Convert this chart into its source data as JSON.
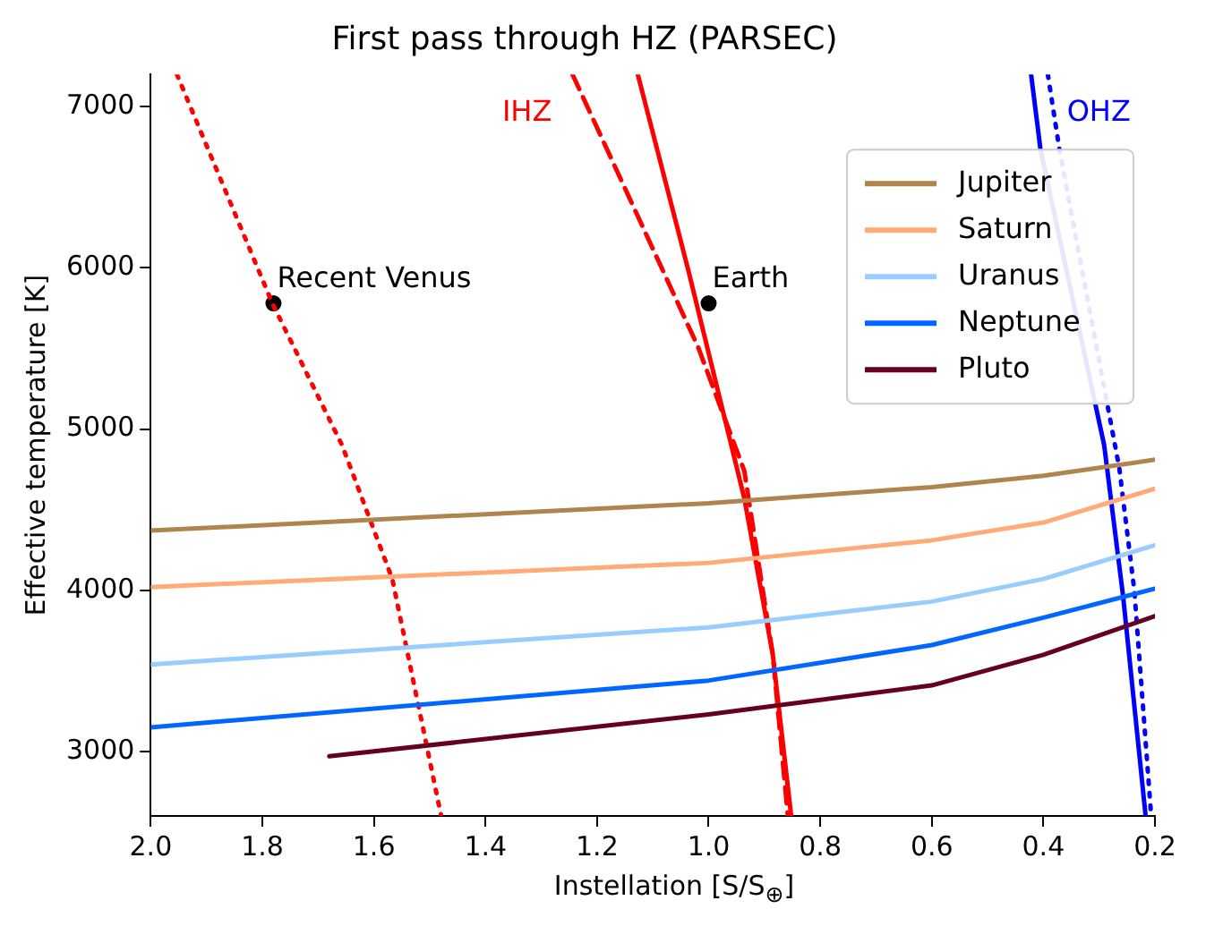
{
  "chart_data": {
    "type": "line",
    "title": "First pass through HZ (PARSEC)",
    "xlabel": "Instellation [S/S$_{⊕}$]",
    "ylabel": "Effective temperature [K]",
    "xlim": [
      2.0,
      0.2
    ],
    "ylim": [
      2600,
      7200
    ],
    "xticks": [
      {
        "value": 2.0,
        "label": "2.0"
      },
      {
        "value": 1.8,
        "label": "1.8"
      },
      {
        "value": 1.6,
        "label": "1.6"
      },
      {
        "value": 1.4,
        "label": "1.4"
      },
      {
        "value": 1.2,
        "label": "1.2"
      },
      {
        "value": 1.0,
        "label": "1.0"
      },
      {
        "value": 0.8,
        "label": "0.8"
      },
      {
        "value": 0.6,
        "label": "0.6"
      },
      {
        "value": 0.4,
        "label": "0.4"
      },
      {
        "value": 0.2,
        "label": "0.2"
      }
    ],
    "yticks": [
      3000,
      4000,
      5000,
      6000,
      7000
    ],
    "series": [
      {
        "name": "Jupiter",
        "color": "#b0844f",
        "line_style": "solid",
        "x": [
          2.0,
          1.0,
          0.6,
          0.4,
          0.2
        ],
        "values": [
          4370,
          4540,
          4640,
          4710,
          4810
        ]
      },
      {
        "name": "Saturn",
        "color": "#ffaa77",
        "line_style": "solid",
        "x": [
          2.0,
          1.0,
          0.6,
          0.4,
          0.2
        ],
        "values": [
          4020,
          4170,
          4310,
          4420,
          4630
        ]
      },
      {
        "name": "Uranus",
        "color": "#99ccff",
        "line_style": "solid",
        "x": [
          2.0,
          1.0,
          0.6,
          0.4,
          0.2
        ],
        "values": [
          3540,
          3770,
          3930,
          4070,
          4280
        ]
      },
      {
        "name": "Neptune",
        "color": "#0066ff",
        "line_style": "solid",
        "x": [
          2.0,
          1.0,
          0.6,
          0.4,
          0.2
        ],
        "values": [
          3150,
          3440,
          3660,
          3830,
          4010
        ]
      },
      {
        "name": "Pluto",
        "color": "#660022",
        "line_style": "solid",
        "x": [
          1.68,
          1.0,
          0.6,
          0.4,
          0.2
        ],
        "values": [
          2970,
          3230,
          3410,
          3600,
          3840
        ]
      },
      {
        "name": "IHZ",
        "color": "#ff0000",
        "line_style": "solid",
        "x": [
          1.127,
          1.036,
          0.936,
          0.885,
          0.852
        ],
        "values": [
          7200,
          5980,
          4570,
          3600,
          2600
        ]
      },
      {
        "color": "#ff0000",
        "line_style": "dashed",
        "x": [
          1.244,
          1.019,
          0.936,
          0.885,
          0.858
        ],
        "values": [
          7200,
          5510,
          4740,
          3600,
          2600
        ]
      },
      {
        "color": "#ff0000",
        "line_style": "dotted",
        "x": [
          1.953,
          1.782,
          1.657,
          1.567,
          1.48
        ],
        "values": [
          7200,
          5780,
          4900,
          4070,
          2610
        ]
      },
      {
        "name": "OHZ",
        "color": "#0000ff",
        "line_style": "solid",
        "x": [
          0.422,
          0.405,
          0.291,
          0.257,
          0.217
        ],
        "values": [
          7200,
          6730,
          4900,
          3960,
          2610
        ]
      },
      {
        "color": "#0000ff",
        "line_style": "dotted",
        "x": [
          0.392,
          0.371,
          0.264,
          0.237,
          0.207
        ],
        "values": [
          7200,
          6730,
          4760,
          4000,
          2610
        ]
      },
      {
        "type": "scatter",
        "color": "#000000",
        "marker": "circle",
        "x": [
          1.78,
          1.0
        ],
        "values": [
          5780,
          5780
        ]
      }
    ],
    "annotations": [
      {
        "text": "Recent Venus",
        "x": 1.78,
        "y": 5780
      },
      {
        "text": "Earth",
        "x": 1.0,
        "y": 5780
      }
    ],
    "legend": "top right",
    "grid": false
  }
}
